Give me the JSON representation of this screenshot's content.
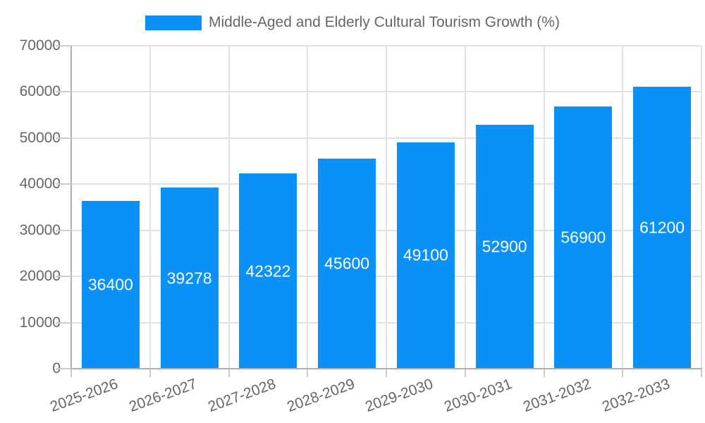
{
  "chart_data": {
    "type": "bar",
    "title": "Middle-Aged and Elderly Cultural Tourism Growth (%)",
    "categories": [
      "2025-2026",
      "2026-2027",
      "2027-2028",
      "2028-2029",
      "2029-2030",
      "2030-2031",
      "2031-2032",
      "2032-2033"
    ],
    "values": [
      36400,
      39278,
      42322,
      45600,
      49100,
      52900,
      56900,
      61200
    ],
    "xlabel": "",
    "ylabel": "",
    "ylim": [
      0,
      70000
    ],
    "y_ticks": [
      0,
      10000,
      20000,
      30000,
      40000,
      50000,
      60000,
      70000
    ],
    "grid": true,
    "legend_position": "top",
    "colors": {
      "bar": "#0991f8",
      "value_label": "#ffffff",
      "axis_text": "#666666",
      "gridline": "#e2e2e2",
      "axis_line": "#b0b0b0",
      "tick": "#cccccc",
      "background": "#ffffff"
    }
  }
}
